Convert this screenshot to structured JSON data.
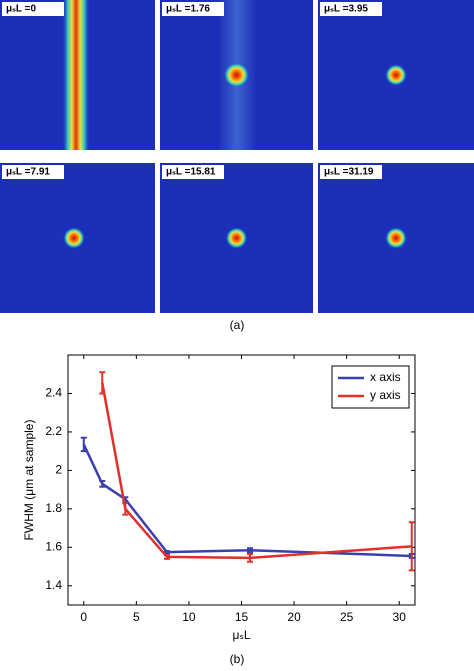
{
  "images": [
    {
      "label": "μₛL =0"
    },
    {
      "label": "μₛL =1.76"
    },
    {
      "label": "μₛL =3.95"
    },
    {
      "label": "μₛL =7.91"
    },
    {
      "label": "μₛL =15.81"
    },
    {
      "label": "μₛL =31.19"
    }
  ],
  "caption_a": "(a)",
  "caption_b": "(b)",
  "chart_data": {
    "type": "line",
    "x_label": "μₛL",
    "y_label": "FWHM (μm at sample)",
    "x": [
      0,
      1.76,
      3.95,
      7.91,
      15.81,
      31.19
    ],
    "series": [
      {
        "name": "x axis",
        "color": "#3b3fb0",
        "values": [
          2.135,
          1.93,
          1.85,
          1.575,
          1.585,
          1.555
        ],
        "errors": [
          0.035,
          0.015,
          0.01,
          0.005,
          0.01,
          0.01
        ]
      },
      {
        "name": "y axis",
        "color": "#e0302a",
        "values": [
          null,
          2.455,
          1.8,
          1.55,
          1.545,
          1.605
        ],
        "errors": [
          null,
          0.055,
          0.03,
          0.01,
          0.02,
          0.125
        ]
      }
    ],
    "xlim": [
      -1.5,
      31.5
    ],
    "xticks": [
      0,
      5,
      10,
      15,
      20,
      25,
      30
    ],
    "ylim": [
      1.3,
      2.6
    ],
    "yticks": [
      1.4,
      1.6,
      1.8,
      2,
      2.2,
      2.4
    ],
    "legend": "top-right"
  }
}
